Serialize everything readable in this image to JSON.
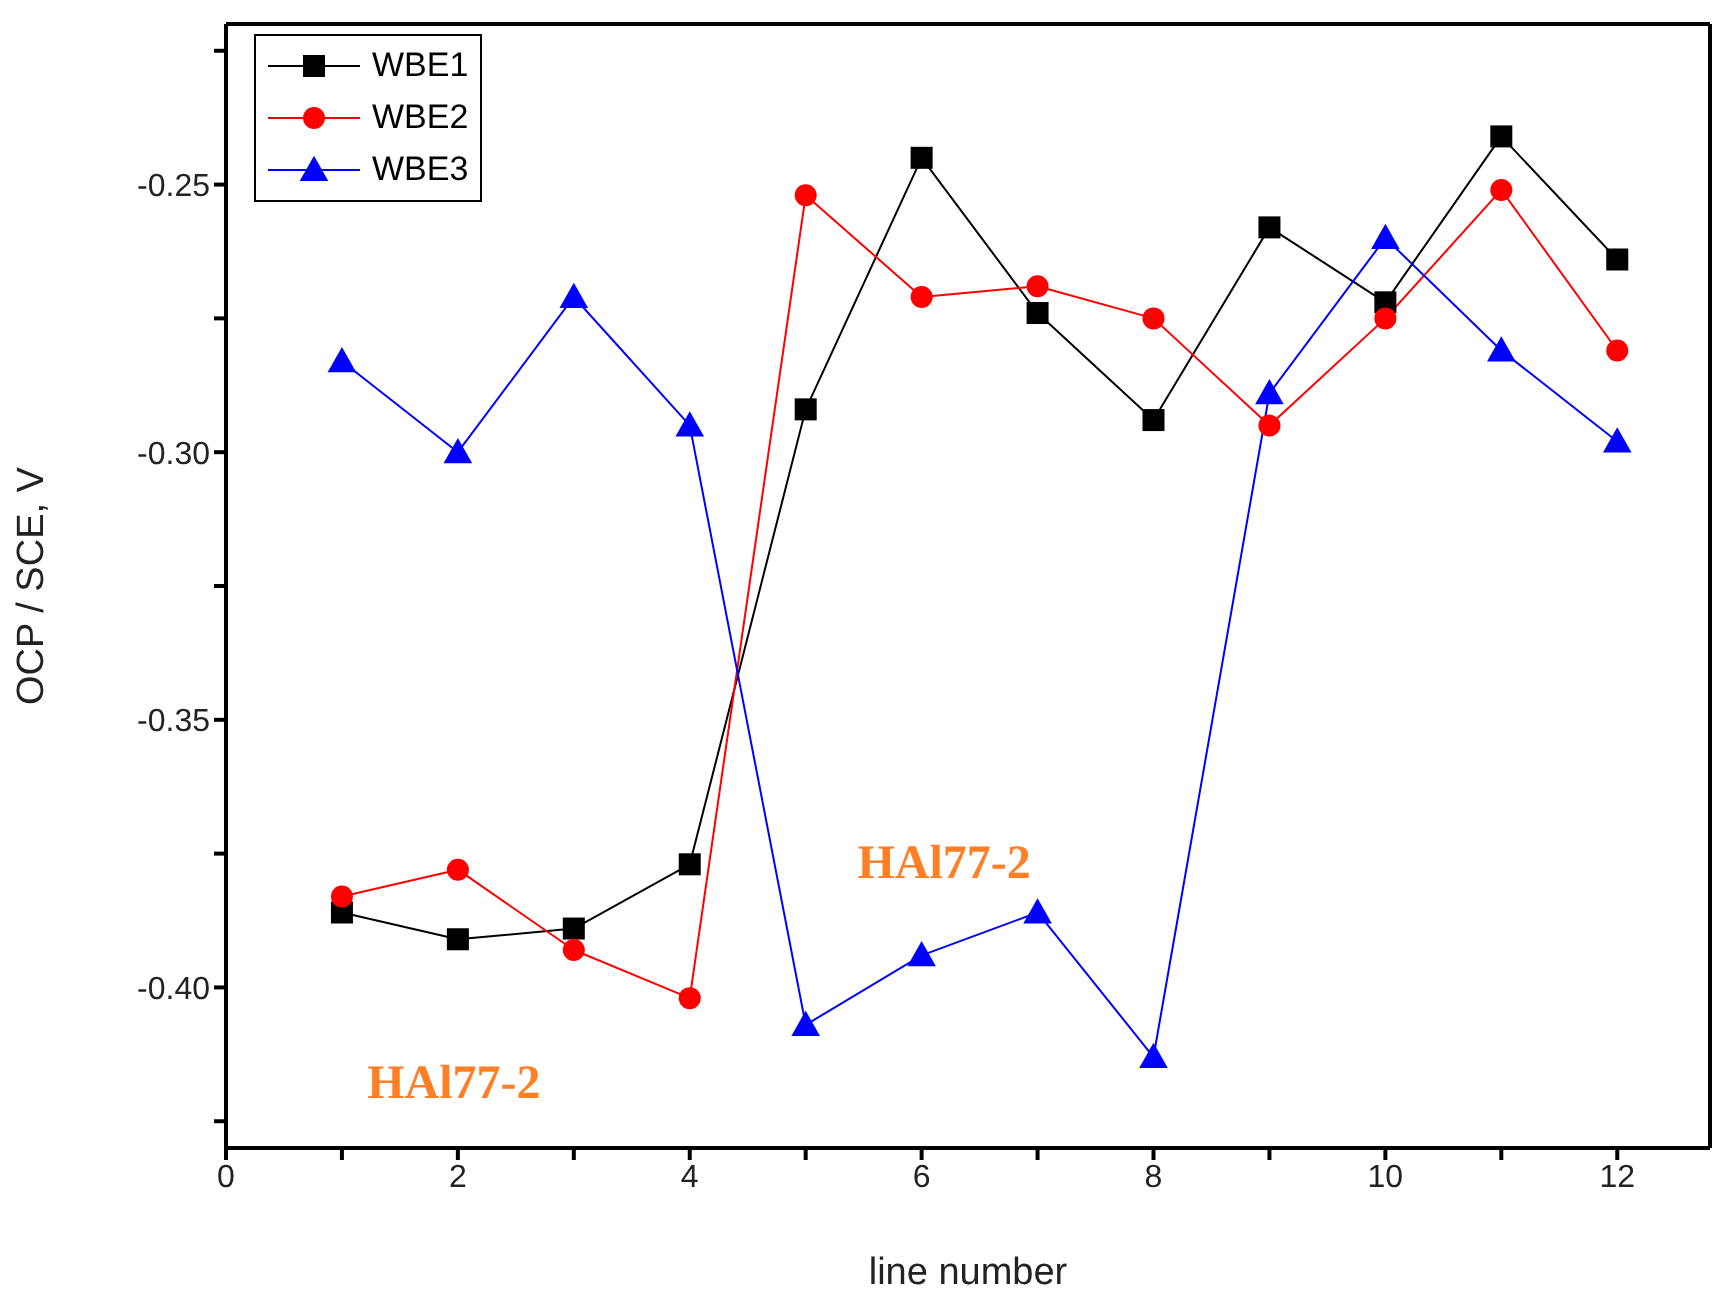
{
  "chart_data": {
    "type": "line",
    "xlabel": "line number",
    "ylabel": "OCP / SCE, V",
    "x": [
      1,
      2,
      3,
      4,
      5,
      6,
      7,
      8,
      9,
      10,
      11,
      12
    ],
    "series": [
      {
        "name": "WBE1",
        "color": "#000000",
        "marker": "square",
        "values": [
          -0.386,
          -0.391,
          -0.389,
          -0.377,
          -0.292,
          -0.245,
          -0.274,
          -0.294,
          -0.258,
          -0.272,
          -0.241,
          -0.264
        ]
      },
      {
        "name": "WBE2",
        "color": "#ff0000",
        "marker": "circle",
        "values": [
          -0.383,
          -0.378,
          -0.393,
          -0.402,
          -0.252,
          -0.271,
          -0.269,
          -0.275,
          -0.295,
          -0.275,
          -0.251,
          -0.281
        ]
      },
      {
        "name": "WBE3",
        "color": "#0000ff",
        "marker": "triangle",
        "values": [
          -0.283,
          -0.3,
          -0.271,
          -0.295,
          -0.407,
          -0.394,
          -0.386,
          -0.413,
          -0.289,
          -0.26,
          -0.281,
          -0.298
        ]
      }
    ],
    "xlim": [
      0,
      12.8
    ],
    "xticks": [
      0,
      {
        "value": 1,
        "label": null
      },
      2,
      {
        "value": 3,
        "label": null
      },
      4,
      {
        "value": 5,
        "label": null
      },
      6,
      {
        "value": 7,
        "label": null
      },
      8,
      {
        "value": 9,
        "label": null
      },
      10,
      {
        "value": 11,
        "label": null
      },
      12
    ],
    "ylim": [
      -0.43,
      -0.22
    ],
    "yticks": [
      {
        "value": -0.425,
        "label": null
      },
      {
        "value": -0.4,
        "label": "-0.40"
      },
      {
        "value": -0.375,
        "label": null
      },
      {
        "value": -0.35,
        "label": "-0.35"
      },
      {
        "value": -0.325,
        "label": null
      },
      {
        "value": -0.3,
        "label": "-0.30"
      },
      {
        "value": -0.275,
        "label": null
      },
      {
        "value": -0.25,
        "label": "-0.25"
      },
      {
        "value": -0.225,
        "label": null
      }
    ],
    "legend": "top left",
    "grid": false,
    "line_style": "solid",
    "annotations": [
      "HAl77-2",
      "HAl77-2"
    ]
  }
}
